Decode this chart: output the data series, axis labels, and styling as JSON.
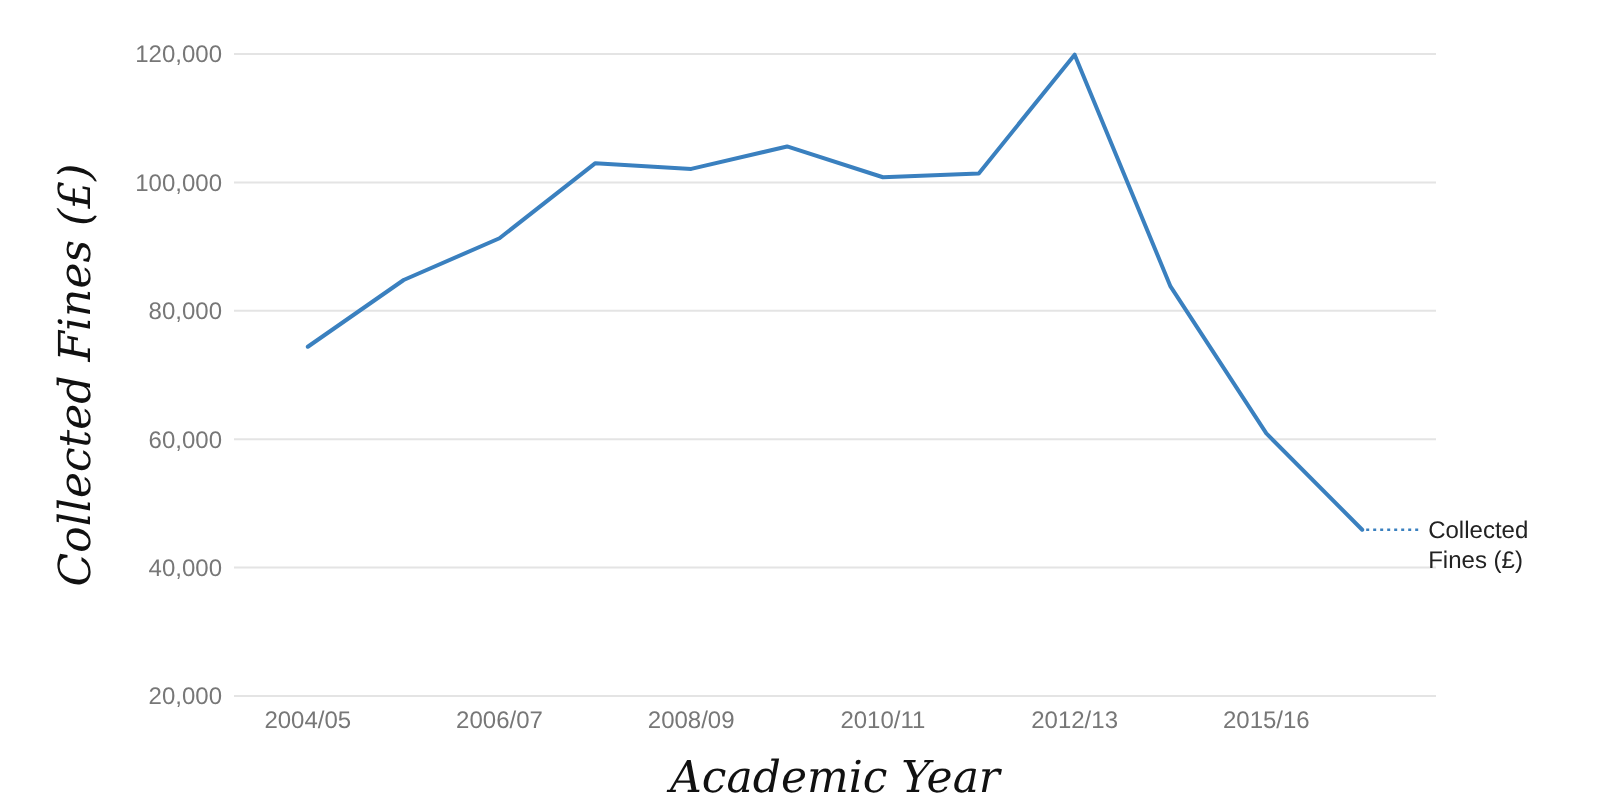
{
  "chart_data": {
    "type": "line",
    "xlabel": "Academic Year",
    "ylabel": "Collected Fines (£)",
    "categories": [
      "2004/05",
      null,
      "2006/07",
      null,
      "2008/09",
      null,
      "2010/11",
      null,
      "2012/13",
      null,
      "2015/16",
      null
    ],
    "series": [
      {
        "name": "Collected Fines (£)",
        "color": "#3a80bf",
        "values": [
          74400,
          84800,
          91300,
          103000,
          102100,
          105600,
          100800,
          101400,
          119900,
          83800,
          60900,
          45900
        ]
      }
    ],
    "ylim": [
      20000,
      120000
    ],
    "yticks": [
      {
        "value": 20000,
        "label": "20,000"
      },
      {
        "value": 40000,
        "label": "40,000"
      },
      {
        "value": 60000,
        "label": "60,000"
      },
      {
        "value": 80000,
        "label": "80,000"
      },
      {
        "value": 100000,
        "label": "100,000"
      },
      {
        "value": 120000,
        "label": "120,000"
      }
    ],
    "grid": "y",
    "marker": "none",
    "line_style": "solid"
  }
}
